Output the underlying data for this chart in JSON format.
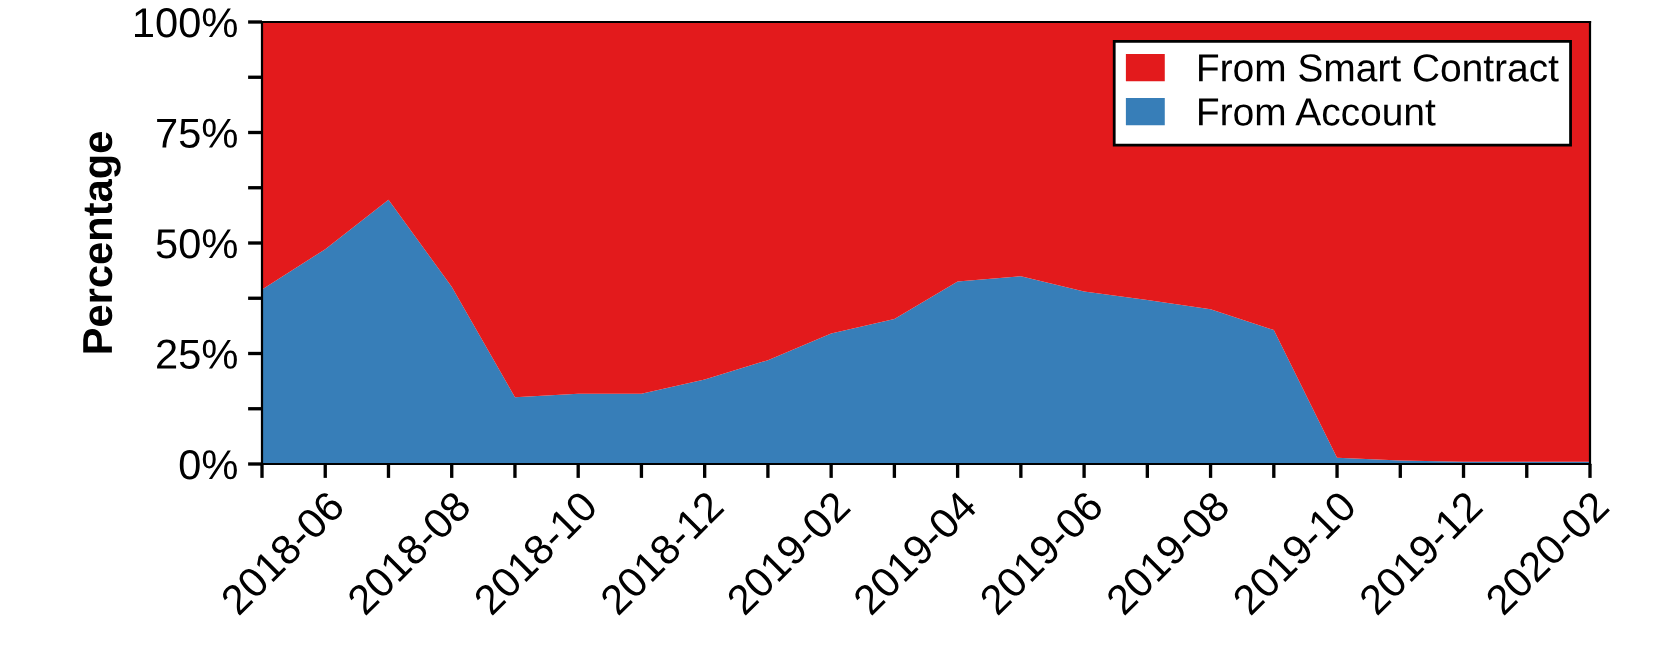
{
  "chart_data": {
    "type": "area",
    "stacked": true,
    "ylabel": "Percentage",
    "categories": [
      null,
      "2018-06",
      null,
      "2018-08",
      null,
      "2018-10",
      null,
      "2018-12",
      null,
      "2019-02",
      null,
      "2019-04",
      null,
      "2019-06",
      null,
      "2019-08",
      null,
      "2019-10",
      null,
      "2019-12",
      null,
      "2020-02"
    ],
    "series": [
      {
        "name": "From Account",
        "color": "#377eb8",
        "values": [
          39.5,
          48.6,
          59.8,
          40.1,
          15.1,
          15.9,
          15.9,
          19.1,
          23.5,
          29.5,
          32.8,
          41.3,
          42.5,
          39.0,
          37.1,
          35.0,
          30.3,
          1.4,
          0.8,
          0.5,
          0.5,
          0.5
        ]
      },
      {
        "name": "From Smart Contract",
        "color": "#e31a1c",
        "values": [
          60.5,
          51.4,
          40.2,
          59.9,
          84.9,
          84.1,
          84.1,
          80.9,
          76.5,
          70.5,
          67.2,
          58.7,
          57.5,
          61.0,
          62.9,
          65.0,
          69.7,
          98.6,
          99.2,
          99.5,
          99.5,
          99.5
        ]
      }
    ],
    "ylim": [
      0,
      100
    ],
    "yticks": [
      {
        "value": 0,
        "label": "0%"
      },
      {
        "value": 12.5,
        "label": null
      },
      {
        "value": 25,
        "label": "25%"
      },
      {
        "value": 37.5,
        "label": null
      },
      {
        "value": 50,
        "label": "50%"
      },
      {
        "value": 62.5,
        "label": null
      },
      {
        "value": 75,
        "label": "75%"
      },
      {
        "value": 87.5,
        "label": null
      },
      {
        "value": 100,
        "label": "100%"
      }
    ],
    "grid": false,
    "legend": "top right"
  }
}
